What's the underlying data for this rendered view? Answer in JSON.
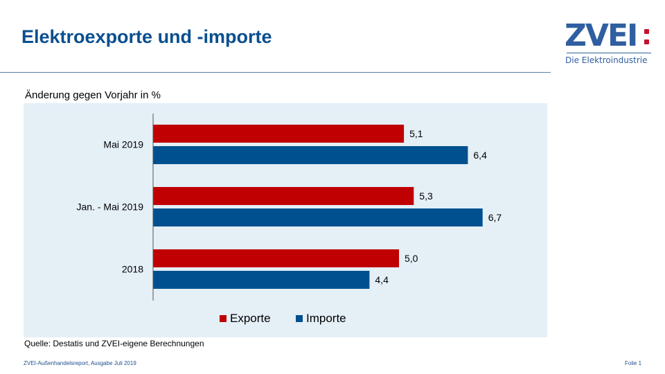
{
  "title": "Elektroexporte und -importe",
  "logo": {
    "mark": "ZVEI",
    "tagline": "Die Elektroindustrie"
  },
  "subtitle": "Änderung gegen Vorjahr in %",
  "source": "Quelle: Destatis und ZVEI-eigene Berechnungen",
  "footer": {
    "left": "ZVEI-Außenhandelsreport,   Ausgabe Juli 2019",
    "right": "Folie 1"
  },
  "colors": {
    "exports": "#c00000",
    "imports": "#00508f",
    "title": "#0a4f8f",
    "chart_bg": "#e4eff6"
  },
  "chart_data": {
    "type": "bar",
    "orientation": "horizontal",
    "title": "Änderung gegen Vorjahr in %",
    "categories": [
      "Mai 2019",
      "Jan. - Mai 2019",
      "2018"
    ],
    "series": [
      {
        "name": "Exporte",
        "values": [
          5.1,
          5.3,
          5.0
        ],
        "labels": [
          "5,1",
          "5,3",
          "5,0"
        ]
      },
      {
        "name": "Importe",
        "values": [
          6.4,
          6.7,
          4.4
        ],
        "labels": [
          "6,4",
          "6,7",
          "4,4"
        ]
      }
    ],
    "xlim": [
      0,
      7.0
    ],
    "legend": "bottom"
  }
}
